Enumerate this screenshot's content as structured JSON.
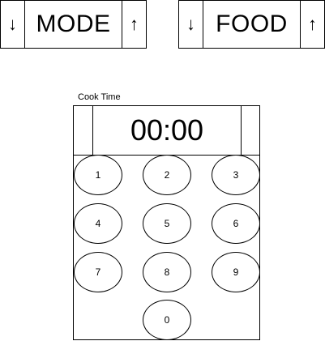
{
  "mode_stepper": {
    "label": "MODE",
    "down_arrow": "↓",
    "up_arrow": "↑"
  },
  "food_stepper": {
    "label": "FOOD",
    "down_arrow": "↓",
    "up_arrow": "↑"
  },
  "cook_time": {
    "label": "Cook Time",
    "display": "00:00"
  },
  "keypad": {
    "keys": [
      "1",
      "2",
      "3",
      "4",
      "5",
      "6",
      "7",
      "8",
      "9",
      "0"
    ]
  }
}
